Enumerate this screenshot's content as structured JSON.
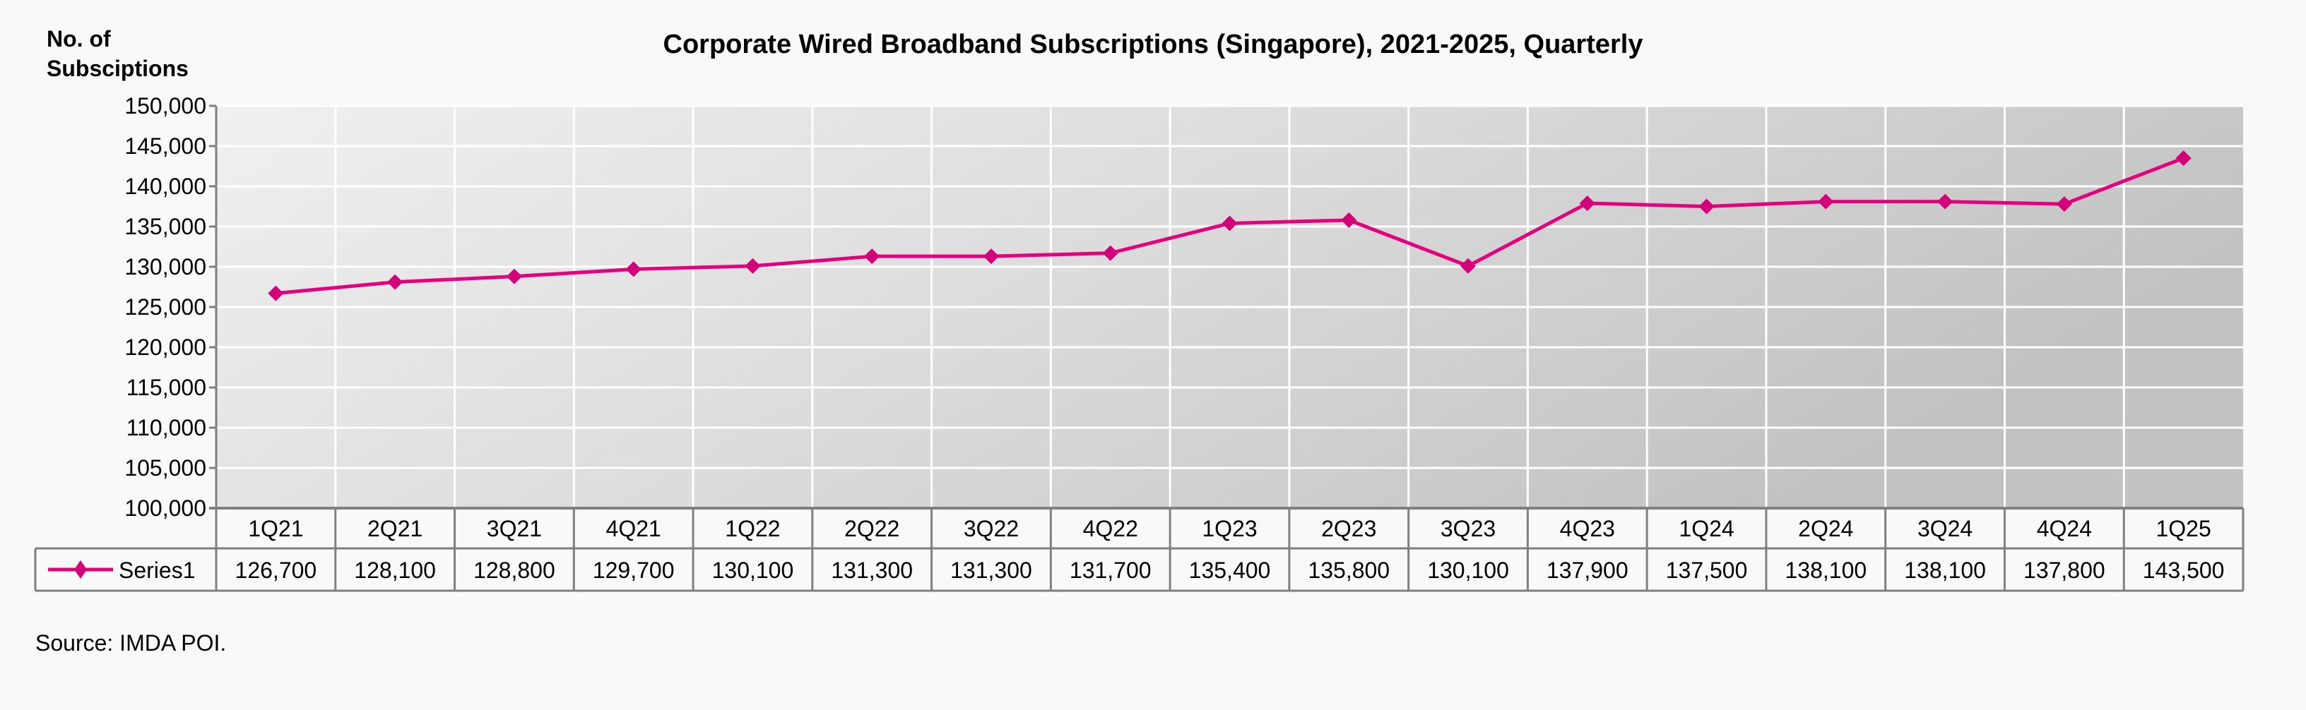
{
  "chart_data": {
    "type": "line",
    "title": "Corporate Wired Broadband Subscriptions (Singapore), 2021-2025, Quarterly",
    "ylabel_line1": "No. of",
    "ylabel_line2": "Subsciptions",
    "xlabel": "",
    "ylim": [
      100000,
      150000
    ],
    "ytick_step": 5000,
    "yticks": [
      "100,000",
      "105,000",
      "110,000",
      "115,000",
      "120,000",
      "125,000",
      "130,000",
      "135,000",
      "140,000",
      "145,000",
      "150,000"
    ],
    "grid": true,
    "categories": [
      "1Q21",
      "2Q21",
      "3Q21",
      "4Q21",
      "1Q22",
      "2Q22",
      "3Q22",
      "4Q22",
      "1Q23",
      "2Q23",
      "3Q23",
      "4Q23",
      "1Q24",
      "2Q24",
      "3Q24",
      "4Q24",
      "1Q25"
    ],
    "series": [
      {
        "name": "Series1",
        "color": "#e6007e",
        "marker": "diamond",
        "values": [
          126700,
          128100,
          128800,
          129700,
          130100,
          131300,
          131300,
          131700,
          135400,
          135800,
          130100,
          137900,
          137500,
          138100,
          138100,
          137800,
          143500
        ],
        "labels": [
          "126,700",
          "128,100",
          "128,800",
          "129,700",
          "130,100",
          "131,300",
          "131,300",
          "131,700",
          "135,400",
          "135,800",
          "130,100",
          "137,900",
          "137,500",
          "138,100",
          "138,100",
          "137,800",
          "143,500"
        ]
      }
    ],
    "data_table": true,
    "source": "Source: IMDA POI."
  }
}
